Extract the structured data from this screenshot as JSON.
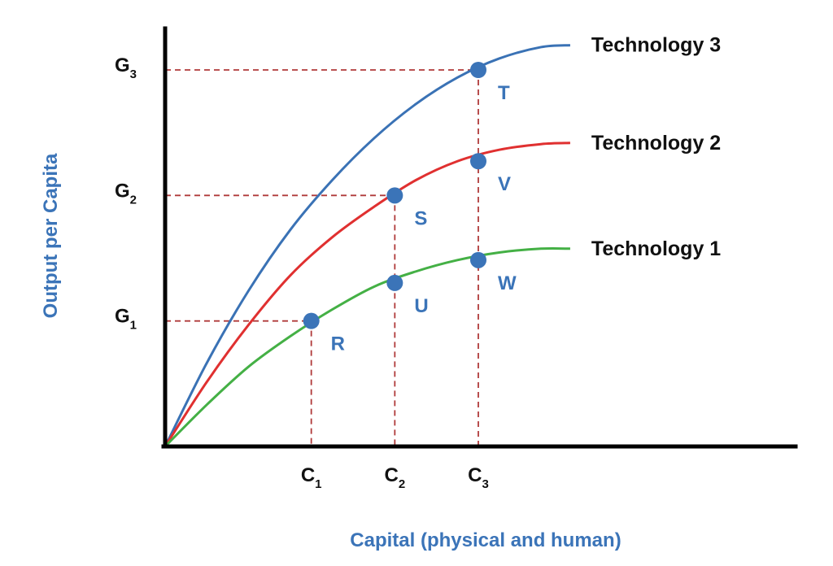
{
  "chart_data": {
    "type": "line",
    "title": "",
    "xlabel": "Capital (physical and human)",
    "ylabel": "Output per Capita",
    "xlim": [
      0,
      10
    ],
    "ylim": [
      0,
      10
    ],
    "legend": "right-end-of-lines",
    "grid": false,
    "colors": {
      "axis": "#000000",
      "guide": "#b03a3a",
      "point": "#3b74b8",
      "label": "#3b74b8"
    },
    "x_ticks": [
      {
        "main": "C",
        "sub": "1",
        "value": 3.5
      },
      {
        "main": "C",
        "sub": "2",
        "value": 5.5
      },
      {
        "main": "C",
        "sub": "3",
        "value": 7.5
      }
    ],
    "y_ticks": [
      {
        "main": "G",
        "sub": "1",
        "value": 3.3
      },
      {
        "main": "G",
        "sub": "2",
        "value": 6.6
      },
      {
        "main": "G",
        "sub": "3",
        "value": 9.9
      }
    ],
    "series": [
      {
        "name": "Technology 3",
        "color": "#3a72b5",
        "x": [
          0,
          1,
          2,
          3,
          4,
          5,
          6,
          7,
          8,
          9,
          9.7
        ],
        "y": [
          0,
          2.2,
          4.1,
          5.7,
          7.0,
          8.1,
          9.0,
          9.7,
          10.2,
          10.5,
          10.55
        ]
      },
      {
        "name": "Technology 2",
        "color": "#e03030",
        "x": [
          0,
          1,
          2,
          3,
          4,
          5,
          6,
          7,
          8,
          9,
          9.7
        ],
        "y": [
          0,
          1.7,
          3.2,
          4.5,
          5.5,
          6.3,
          7.0,
          7.5,
          7.8,
          7.95,
          7.98
        ]
      },
      {
        "name": "Technology 1",
        "color": "#44b045",
        "x": [
          0,
          1,
          2,
          3,
          4,
          5,
          6,
          7,
          8,
          9,
          9.7
        ],
        "y": [
          0,
          1.1,
          2.1,
          2.9,
          3.6,
          4.2,
          4.6,
          4.9,
          5.1,
          5.2,
          5.2
        ]
      }
    ],
    "points": [
      {
        "label": "R",
        "x": 3.5,
        "y": 3.3
      },
      {
        "label": "U",
        "x": 5.5,
        "y": 4.3
      },
      {
        "label": "S",
        "x": 5.5,
        "y": 6.6
      },
      {
        "label": "W",
        "x": 7.5,
        "y": 4.9
      },
      {
        "label": "V",
        "x": 7.5,
        "y": 7.5
      },
      {
        "label": "T",
        "x": 7.5,
        "y": 9.9
      }
    ],
    "guides": [
      {
        "x": 3.5,
        "y": 3.3
      },
      {
        "x": 5.5,
        "y": 6.6
      },
      {
        "x": 7.5,
        "y": 9.9
      }
    ]
  }
}
